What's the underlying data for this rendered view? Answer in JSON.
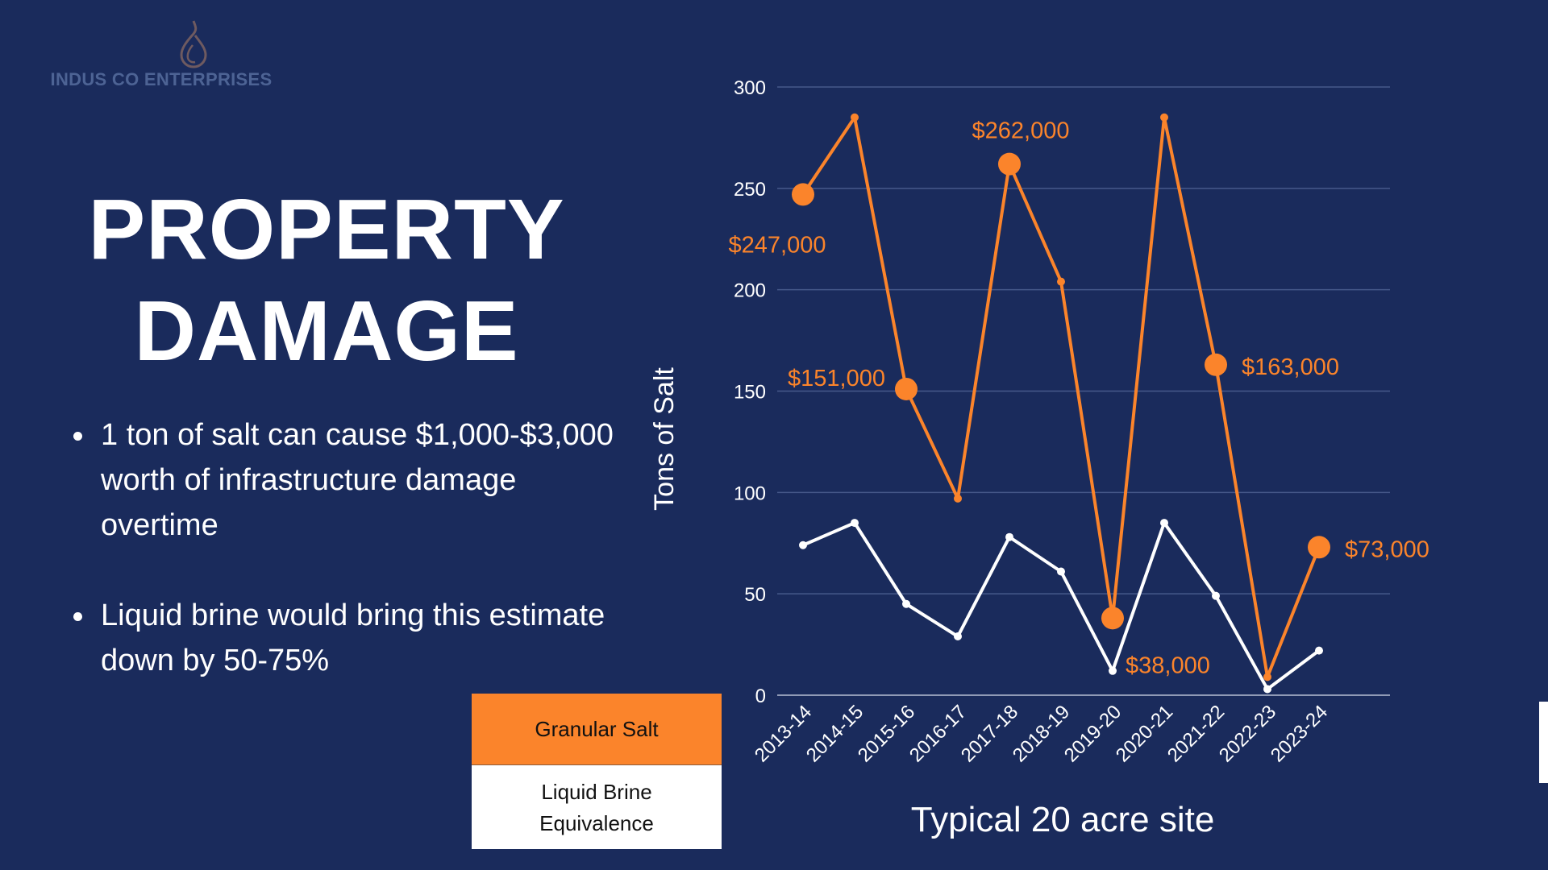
{
  "brand": {
    "name": "INDUS CO ENTERPRISES",
    "logo_icon": "water-drop-icon",
    "logo_color": "#6e5a60",
    "text_color": "#4d6394"
  },
  "page": {
    "title_line1": "PROPERTY",
    "title_line2": "DAMAGE",
    "background": "#1a2b5c",
    "bullets": [
      "1 ton of salt can cause $1,000-$3,000 worth of infrastructure damage overtime",
      "Liquid brine would bring this estimate down by 50-75%"
    ]
  },
  "legend": {
    "items": [
      {
        "label": "Granular Salt",
        "color": "#fb842b"
      },
      {
        "label_line1": "Liquid Brine",
        "label_line2": "Equivalence",
        "color": "#ffffff"
      }
    ]
  },
  "chart_data": {
    "type": "line",
    "title": "",
    "xlabel": "Typical 20 acre site",
    "ylabel": "Tons of Salt",
    "ylim": [
      0,
      300
    ],
    "yticks": [
      0,
      50,
      100,
      150,
      200,
      250,
      300
    ],
    "grid": true,
    "legend_position": "bottom-left",
    "categories": [
      "2013-14",
      "2014-15",
      "2015-16",
      "2016-17",
      "2017-18",
      "2018-19",
      "2019-20",
      "2020-21",
      "2021-22",
      "2022-23",
      "2023-24"
    ],
    "series": [
      {
        "name": "Granular Salt",
        "color": "#fb842b",
        "values": [
          247,
          285,
          151,
          97,
          262,
          204,
          38,
          285,
          163,
          9,
          73
        ]
      },
      {
        "name": "Liquid Brine Equivalence",
        "color": "#ffffff",
        "values": [
          74,
          85,
          45,
          29,
          78,
          61,
          12,
          85,
          49,
          3,
          22
        ]
      }
    ],
    "annotations": [
      {
        "category": "2013-14",
        "series": "Granular Salt",
        "text": "$247,000",
        "placement": "below"
      },
      {
        "category": "2015-16",
        "series": "Granular Salt",
        "text": "$151,000",
        "placement": "left"
      },
      {
        "category": "2017-18",
        "series": "Granular Salt",
        "text": "$262,000",
        "placement": "above"
      },
      {
        "category": "2019-20",
        "series": "Granular Salt",
        "text": "$38,000",
        "placement": "below-right"
      },
      {
        "category": "2021-22",
        "series": "Granular Salt",
        "text": "$163,000",
        "placement": "right"
      },
      {
        "category": "2023-24",
        "series": "Granular Salt",
        "text": "$73,000",
        "placement": "right"
      }
    ]
  }
}
